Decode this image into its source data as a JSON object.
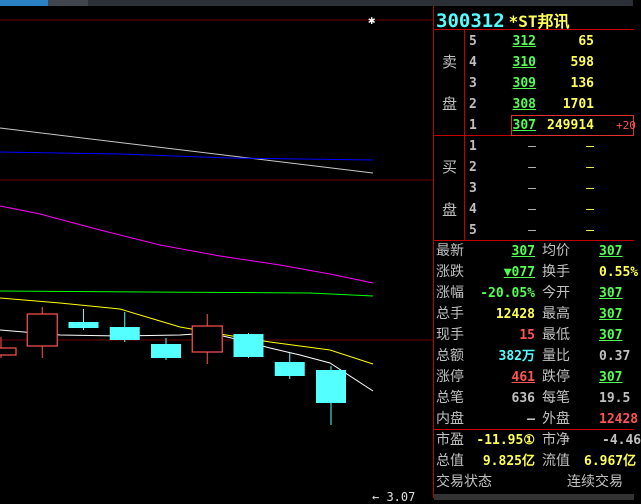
{
  "stock": {
    "code": "300312",
    "name": "*ST邦讯"
  },
  "order_book": {
    "sell_label": [
      "卖",
      "盘"
    ],
    "buy_label": [
      "买",
      "盘"
    ],
    "sell": [
      {
        "level": "5",
        "price": "312",
        "volume": "65"
      },
      {
        "level": "4",
        "price": "310",
        "volume": "598"
      },
      {
        "level": "3",
        "price": "309",
        "volume": "136"
      },
      {
        "level": "2",
        "price": "308",
        "volume": "1701"
      },
      {
        "level": "1",
        "price": "307",
        "volume": "249914",
        "change": "+20"
      }
    ],
    "buy": [
      {
        "level": "1",
        "price": "–",
        "volume": "–"
      },
      {
        "level": "2",
        "price": "–",
        "volume": "–"
      },
      {
        "level": "3",
        "price": "–",
        "volume": "–"
      },
      {
        "level": "4",
        "price": "–",
        "volume": "–"
      },
      {
        "level": "5",
        "price": "–",
        "volume": "–"
      }
    ]
  },
  "stats": [
    {
      "l1": "最新",
      "v1": "307",
      "l2": "均价",
      "v2": "307"
    },
    {
      "l1": "涨跌",
      "v1": "▼077",
      "l2": "换手",
      "v2": "0.55%"
    },
    {
      "l1": "涨幅",
      "v1": "-20.05%",
      "l2": "今开",
      "v2": "307"
    },
    {
      "l1": "总手",
      "v1": "12428",
      "l2": "最高",
      "v2": "307"
    },
    {
      "l1": "现手",
      "v1": "15",
      "l2": "最低",
      "v2": "307"
    },
    {
      "l1": "总额",
      "v1": "382万",
      "l2": "量比",
      "v2": "0.37"
    },
    {
      "l1": "涨停",
      "v1": "461",
      "l2": "跌停",
      "v2": "307"
    },
    {
      "l1": "总笔",
      "v1": "636",
      "l2": "每笔",
      "v2": "19.5"
    },
    {
      "l1": "内盘",
      "v1": "–",
      "l2": "外盘",
      "v2": "12428"
    }
  ],
  "valuation": [
    {
      "l1": "市盈",
      "v1": "-11.95①",
      "l2": "市净",
      "v2": "-4.46"
    },
    {
      "l1": "总值",
      "v1": "9.825亿",
      "l2": "流值",
      "v2": "6.967亿"
    }
  ],
  "trade_status": {
    "label": "交易状态",
    "value": "连续交易"
  },
  "chart_data": {
    "type": "candlestick",
    "candles": [
      {
        "o": 3.77,
        "c": 3.84,
        "h": 3.95,
        "l": 3.74
      },
      {
        "o": 3.86,
        "c": 4.18,
        "h": 4.25,
        "l": 3.74
      },
      {
        "o": 4.1,
        "c": 4.04,
        "h": 4.23,
        "l": 4.02
      },
      {
        "o": 4.05,
        "c": 3.92,
        "h": 4.2,
        "l": 3.9
      },
      {
        "o": 3.88,
        "c": 3.74,
        "h": 3.94,
        "l": 3.72
      },
      {
        "o": 3.8,
        "c": 4.06,
        "h": 4.18,
        "l": 3.68
      },
      {
        "o": 3.98,
        "c": 3.75,
        "h": 3.99,
        "l": 3.74
      },
      {
        "o": 3.7,
        "c": 3.56,
        "h": 3.79,
        "l": 3.53
      },
      {
        "o": 3.62,
        "c": 3.29,
        "h": 3.66,
        "l": 3.07
      }
    ],
    "low_marker": "← 3.07",
    "colors": {
      "up": "#ff5454",
      "down": "#54ffff",
      "grid": "#6a0000"
    }
  }
}
